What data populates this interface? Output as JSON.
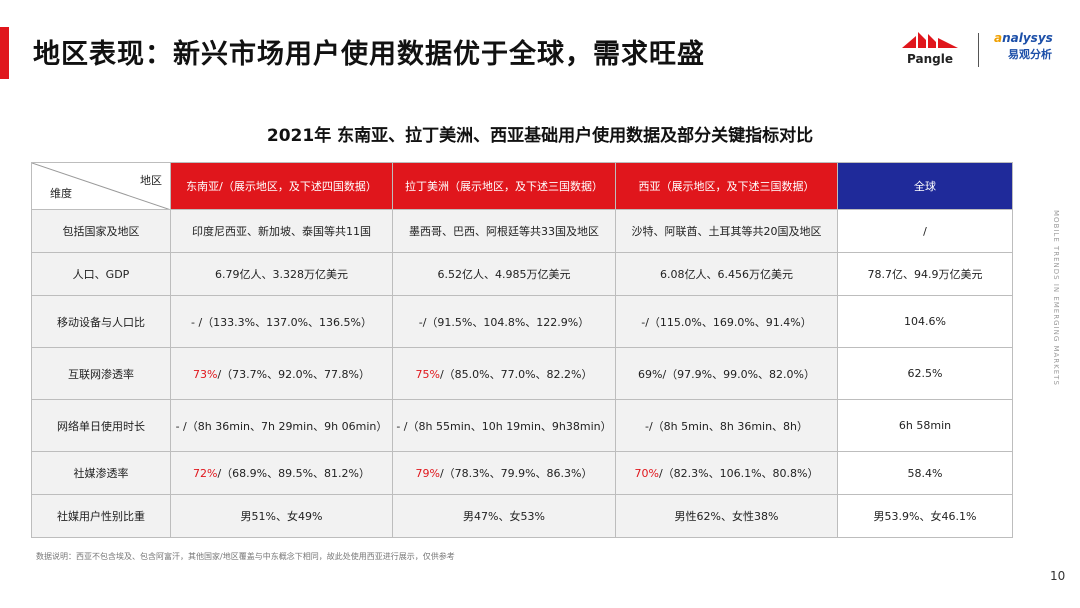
{
  "slide": {
    "title": "地区表现：新兴市场用户使用数据优于全球，需求旺盛",
    "accent_color": "#e0161c",
    "page_number": "10",
    "side_text": "MOBILE TRENDS IN EMERGING MARKETS",
    "footnote": "数据说明：西亚不包含埃及、包含阿富汗，其他国家/地区覆盖与中东概念下相同，故此处使用西亚进行展示，仅供参考"
  },
  "logos": {
    "pangle": "Pangle",
    "analysys_brand_prefix": "a",
    "analysys_brand_rest": "nalysys",
    "analysys_cn": "易观分析"
  },
  "table": {
    "title": "2021年 东南亚、拉丁美洲、西亚基础用户使用数据及部分关键指标对比",
    "corner_top": "地区",
    "corner_bottom": "维度",
    "colors": {
      "region_header": "#e0161c",
      "global_header": "#1f2a9a",
      "highlight_text": "#e0161c"
    },
    "headers": {
      "sea": "东南亚/（展示地区，及下述四国数据）",
      "la": "拉丁美洲（展示地区，及下述三国数据）",
      "wa": "西亚（展示地区，及下述三国数据）",
      "global": "全球"
    },
    "rows": [
      {
        "label": "包括国家及地区",
        "sea": "印度尼西亚、新加坡、泰国等共11国",
        "la": "墨西哥、巴西、阿根廷等共33国及地区",
        "wa": "沙特、阿联酋、土耳其等共20国及地区",
        "global": "/"
      },
      {
        "label": "人口、GDP",
        "sea": "6.79亿人、3.328万亿美元",
        "la": "6.52亿人、4.985万亿美元",
        "wa": "6.08亿人、6.456万亿美元",
        "global": "78.7亿、94.9万亿美元"
      },
      {
        "label": "移动设备与人口比",
        "sea": "- /（133.3%、137.0%、136.5%）",
        "la": "-/（91.5%、104.8%、122.9%）",
        "wa": "-/（115.0%、169.0%、91.4%）",
        "global": "104.6%"
      },
      {
        "label": "互联网渗透率",
        "sea_hi": "73%",
        "sea": "/（73.7%、92.0%、77.8%）",
        "la_hi": "75%",
        "la": "/（85.0%、77.0%、82.2%）",
        "wa": "69%/（97.9%、99.0%、82.0%）",
        "global": "62.5%"
      },
      {
        "label": "网络单日使用时长",
        "sea": "- /（8h 36min、7h 29min、9h 06min）",
        "la": "- /（8h 55min、10h 19min、9h38min）",
        "wa": "-/（8h 5min、8h 36min、8h）",
        "global": "6h 58min"
      },
      {
        "label": "社媒渗透率",
        "sea_hi": "72%",
        "sea": "/（68.9%、89.5%、81.2%）",
        "la_hi": "79%",
        "la": "/（78.3%、79.9%、86.3%）",
        "wa_hi": "70%",
        "wa": "/（82.3%、106.1%、80.8%）",
        "global": "58.4%"
      },
      {
        "label": "社媒用户性别比重",
        "sea": "男51%、女49%",
        "la": "男47%、女53%",
        "wa": "男性62%、女性38%",
        "global": "男53.9%、女46.1%"
      }
    ]
  }
}
